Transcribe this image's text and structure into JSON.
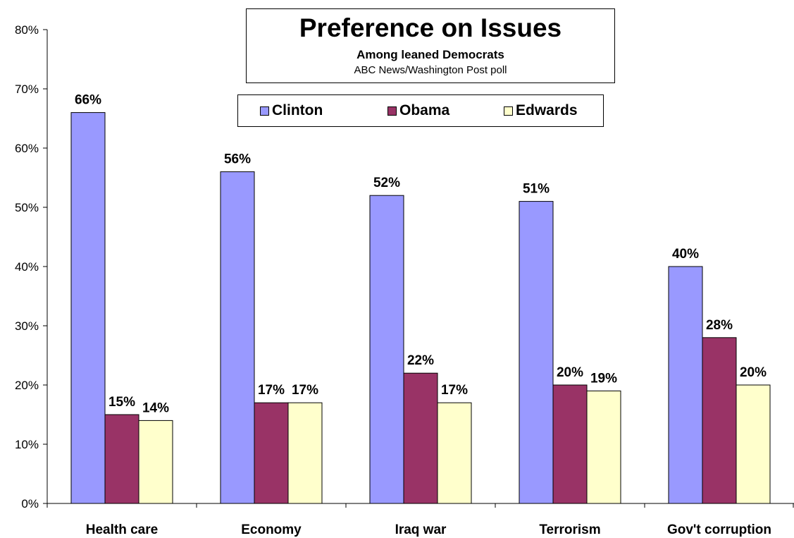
{
  "chart_data": {
    "type": "bar",
    "title": "Preference on Issues",
    "subtitle": "Among leaned Democrats",
    "source": "ABC News/Washington Post poll",
    "categories": [
      "Health care",
      "Economy",
      "Iraq war",
      "Terrorism",
      "Gov't corruption"
    ],
    "series": [
      {
        "name": "Clinton",
        "color": "#9999ff",
        "values": [
          66,
          56,
          52,
          51,
          40
        ]
      },
      {
        "name": "Obama",
        "color": "#993366",
        "values": [
          15,
          17,
          22,
          20,
          28
        ]
      },
      {
        "name": "Edwards",
        "color": "#ffffcc",
        "values": [
          14,
          17,
          17,
          19,
          20
        ]
      }
    ],
    "ylim": [
      0,
      80
    ],
    "yticks": [
      "0%",
      "10%",
      "20%",
      "30%",
      "40%",
      "50%",
      "60%",
      "70%",
      "80%"
    ],
    "value_suffix": "%",
    "grid": false,
    "legend_position": "top"
  }
}
